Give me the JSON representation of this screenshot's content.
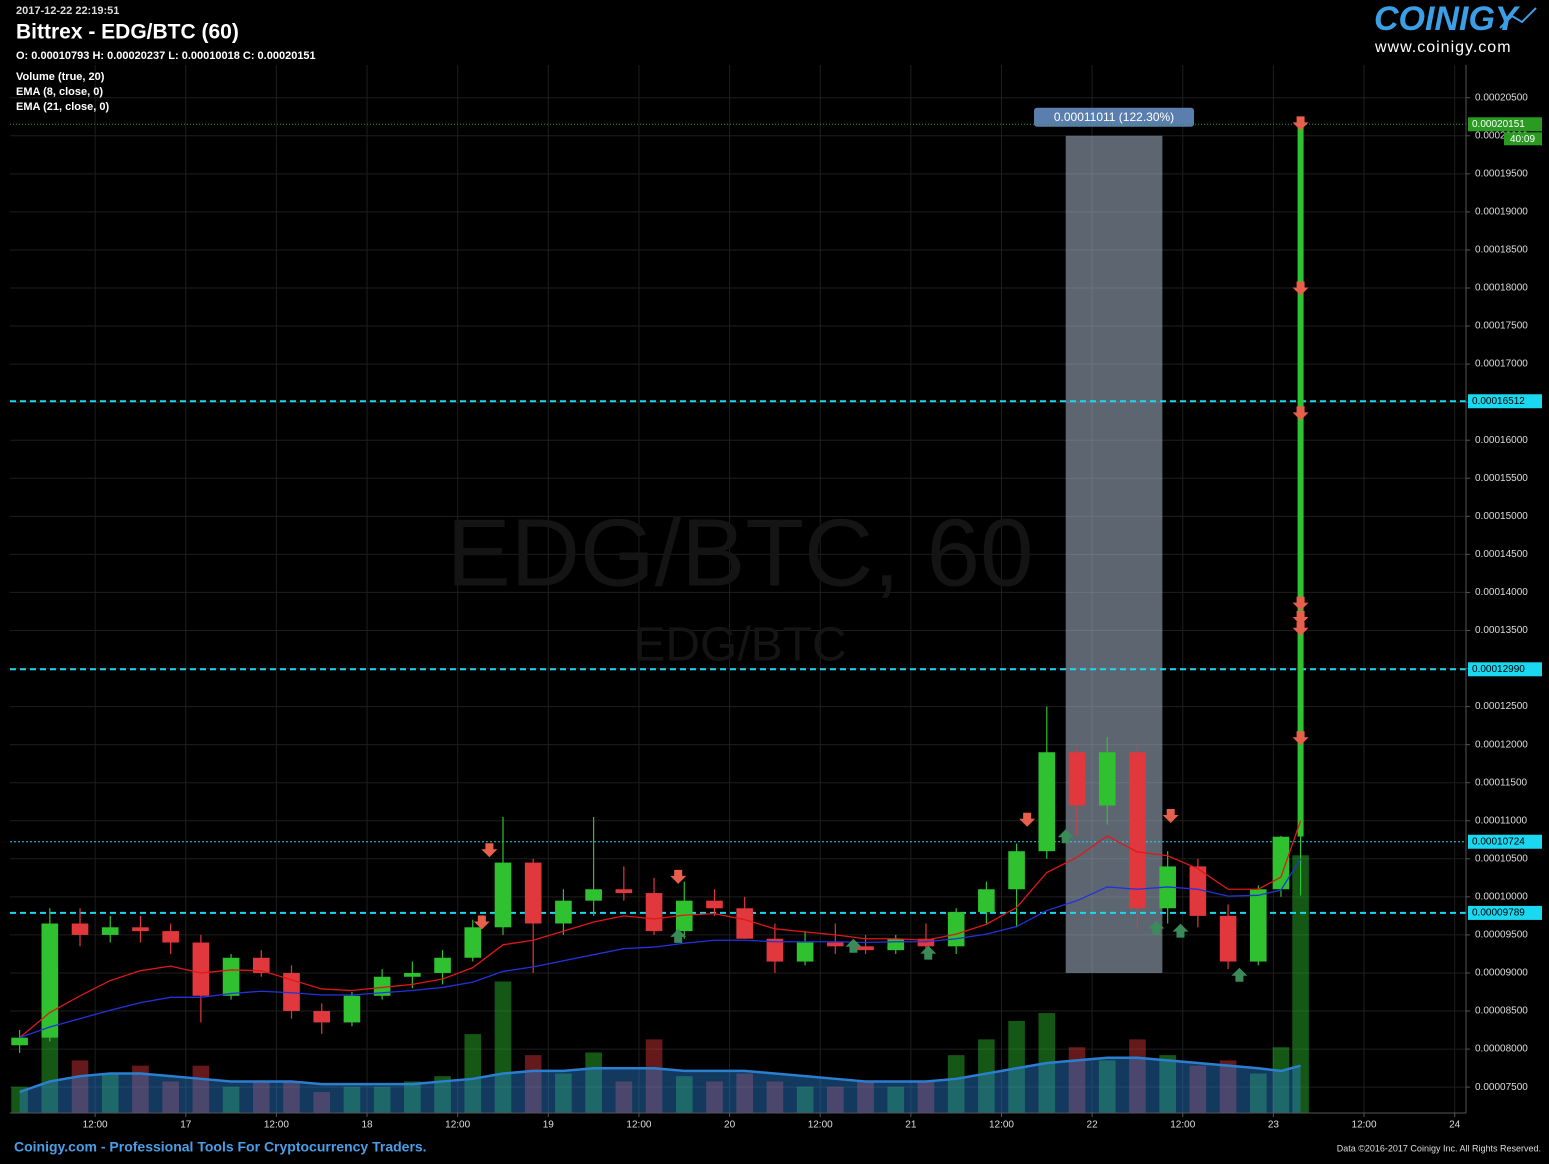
{
  "header": {
    "timestamp": "2017-12-22 22:19:51",
    "title": "Bittrex - EDG/BTC (60)",
    "ohlc": "O: 0.00010793 H: 0.00020237 L: 0.00010018 C: 0.00020151"
  },
  "logo": {
    "name": "COINIGY",
    "url": "www.coinigy.com"
  },
  "footer": {
    "left": "Coinigy.com - Professional Tools For Cryptocurrency Traders.",
    "right": "Data ©2016-2017 Coinigy Inc. All Rights Reserved."
  },
  "chart_data": {
    "type": "candlestick",
    "watermark": "EDG/BTC, 60",
    "watermark_sub": "EDG/BTC",
    "x": [
      2,
      6,
      10,
      14,
      18,
      22,
      26,
      30,
      34,
      38,
      42,
      46,
      50,
      54,
      58,
      62,
      66,
      70,
      74,
      78,
      82,
      86,
      90,
      94,
      98,
      102,
      106,
      110,
      114,
      118,
      122,
      126,
      130,
      134,
      138,
      142,
      146,
      150,
      154,
      158,
      162,
      166,
      169,
      171.6
    ],
    "open": [
      8.05e-05,
      8.15e-05,
      9.65e-05,
      9.5e-05,
      9.6e-05,
      9.55e-05,
      9.4e-05,
      8.7e-05,
      9.2e-05,
      9e-05,
      8.5e-05,
      8.35e-05,
      8.7e-05,
      8.95e-05,
      9e-05,
      9.2e-05,
      9.6e-05,
      0.0001045,
      9.65e-05,
      9.95e-05,
      0.000101,
      0.0001005,
      9.55e-05,
      9.95e-05,
      9.85e-05,
      9.45e-05,
      9.15e-05,
      9.4e-05,
      9.35e-05,
      9.3e-05,
      9.45e-05,
      9.35e-05,
      9.8e-05,
      0.000101,
      0.000106,
      0.000119,
      0.000112,
      0.000119,
      9.85e-05,
      0.000104,
      9.75e-05,
      9.15e-05,
      0.000101,
      0.00010793
    ],
    "high": [
      8.25e-05,
      9.85e-05,
      9.85e-05,
      9.75e-05,
      9.75e-05,
      9.65e-05,
      9.5e-05,
      9.25e-05,
      9.3e-05,
      9.1e-05,
      8.6e-05,
      8.75e-05,
      9.05e-05,
      9.15e-05,
      9.3e-05,
      9.7e-05,
      0.0001105,
      0.000105,
      0.000101,
      0.0001105,
      0.000104,
      0.0001025,
      0.000102,
      0.000101,
      0.0001,
      9.65e-05,
      9.55e-05,
      9.65e-05,
      9.5e-05,
      9.5e-05,
      9.65e-05,
      9.85e-05,
      0.000102,
      0.000107,
      0.000125,
      0.0001195,
      0.000121,
      0.00012,
      0.000106,
      0.000105,
      9.9e-05,
      0.0001015,
      0.000108,
      0.00020237
    ],
    "low": [
      7.95e-05,
      8.1e-05,
      9.35e-05,
      9.4e-05,
      9.4e-05,
      9.25e-05,
      8.35e-05,
      8.65e-05,
      8.95e-05,
      8.4e-05,
      8.2e-05,
      8.3e-05,
      8.65e-05,
      8.8e-05,
      8.85e-05,
      9.15e-05,
      9.5e-05,
      9e-05,
      9.5e-05,
      9.75e-05,
      9.95e-05,
      9.5e-05,
      9.45e-05,
      9.75e-05,
      9.45e-05,
      9e-05,
      9.1e-05,
      9.25e-05,
      9.25e-05,
      9.25e-05,
      9.3e-05,
      9.25e-05,
      9.65e-05,
      9.6e-05,
      0.000105,
      0.000108,
      0.0001095,
      9.6e-05,
      9.65e-05,
      9.6e-05,
      9.05e-05,
      9.1e-05,
      0.0001,
      0.00010018
    ],
    "close": [
      8.15e-05,
      9.65e-05,
      9.5e-05,
      9.6e-05,
      9.55e-05,
      9.4e-05,
      8.7e-05,
      9.2e-05,
      9e-05,
      8.5e-05,
      8.35e-05,
      8.7e-05,
      8.95e-05,
      9e-05,
      9.2e-05,
      9.6e-05,
      0.0001045,
      9.65e-05,
      9.95e-05,
      0.000101,
      0.0001005,
      9.55e-05,
      9.95e-05,
      9.85e-05,
      9.45e-05,
      9.15e-05,
      9.4e-05,
      9.35e-05,
      9.3e-05,
      9.45e-05,
      9.35e-05,
      9.8e-05,
      0.000101,
      0.000106,
      0.000119,
      0.000112,
      0.000119,
      9.85e-05,
      0.000104,
      9.75e-05,
      9.15e-05,
      0.000101,
      0.0001079,
      0.00020151
    ],
    "colors": {
      "up": "#2fc12f",
      "down": "#e0383c"
    },
    "series": [
      {
        "name": "EMA (8, close, 0)",
        "color": "#e01818",
        "values": [
          8.15e-05,
          8.48e-05,
          8.7e-05,
          8.9e-05,
          9.03e-05,
          9.09e-05,
          9e-05,
          9.04e-05,
          9.03e-05,
          8.91e-05,
          8.79e-05,
          8.77e-05,
          8.81e-05,
          8.85e-05,
          8.92e-05,
          9.07e-05,
          9.37e-05,
          9.43e-05,
          9.55e-05,
          9.67e-05,
          9.75e-05,
          9.71e-05,
          9.76e-05,
          9.78e-05,
          9.7e-05,
          9.58e-05,
          9.54e-05,
          9.5e-05,
          9.45e-05,
          9.45e-05,
          9.43e-05,
          9.51e-05,
          9.64e-05,
          9.86e-05,
          0.0001032,
          0.0001052,
          0.000108,
          0.0001059,
          0.0001054,
          0.0001037,
          0.000101,
          0.000101,
          0.0001026,
          0.00011
        ]
      },
      {
        "name": "EMA (21, close, 0)",
        "color": "#2233dd",
        "values": [
          8.15e-05,
          8.29e-05,
          8.4e-05,
          8.51e-05,
          8.61e-05,
          8.68e-05,
          8.68e-05,
          8.73e-05,
          8.76e-05,
          8.74e-05,
          8.71e-05,
          8.71e-05,
          8.74e-05,
          8.77e-05,
          8.81e-05,
          8.88e-05,
          9.02e-05,
          9.08e-05,
          9.16e-05,
          9.24e-05,
          9.32e-05,
          9.34e-05,
          9.39e-05,
          9.43e-05,
          9.43e-05,
          9.41e-05,
          9.41e-05,
          9.41e-05,
          9.4e-05,
          9.41e-05,
          9.41e-05,
          9.45e-05,
          9.51e-05,
          9.61e-05,
          9.82e-05,
          9.95e-05,
          0.0001013,
          0.000101,
          0.0001013,
          0.000101,
          0.0001001,
          0.0001002,
          0.0001009,
          0.000105
        ]
      }
    ],
    "volume_name": "Volume (true, 20)",
    "volume": [
      10,
      55,
      20,
      15,
      18,
      12,
      18,
      10,
      12,
      12,
      8,
      10,
      10,
      12,
      14,
      30,
      50,
      22,
      15,
      23,
      12,
      28,
      14,
      12,
      15,
      12,
      10,
      10,
      12,
      10,
      12,
      22,
      28,
      35,
      38,
      25,
      20,
      28,
      22,
      18,
      20,
      15,
      25,
      98
    ],
    "volume_ma": [
      8,
      12,
      14,
      15,
      15,
      14,
      13,
      12,
      12,
      12,
      11,
      11,
      11,
      11,
      12,
      13,
      15,
      16,
      16,
      17,
      17,
      17,
      16,
      16,
      16,
      15,
      14,
      13,
      12,
      12,
      12,
      13,
      15,
      17,
      19,
      20,
      21,
      21,
      20,
      19,
      18,
      17,
      16,
      18
    ],
    "volume_color": "#2a7fd0",
    "volume_ylim": [
      0,
      100
    ],
    "xlim": [
      0.73,
      193.5
    ],
    "ylim": [
      7.16e-05,
      0.0002093
    ],
    "xticks": [
      {
        "value": 12,
        "label": "12:00"
      },
      {
        "value": 24,
        "label": "17"
      },
      {
        "value": 36,
        "label": "12:00"
      },
      {
        "value": 48,
        "label": "18"
      },
      {
        "value": 60,
        "label": "12:00"
      },
      {
        "value": 72,
        "label": "19"
      },
      {
        "value": 84,
        "label": "12:00"
      },
      {
        "value": 96,
        "label": "20"
      },
      {
        "value": 108,
        "label": "12:00"
      },
      {
        "value": 120,
        "label": "21"
      },
      {
        "value": 132,
        "label": "12:00"
      },
      {
        "value": 144,
        "label": "22"
      },
      {
        "value": 156,
        "label": "12:00"
      },
      {
        "value": 168,
        "label": "23"
      },
      {
        "value": 180,
        "label": "12:00"
      },
      {
        "value": 192,
        "label": "24"
      }
    ],
    "yticks": [
      {
        "value": 7.5e-05,
        "label": "0.00007500"
      },
      {
        "value": 8e-05,
        "label": "0.00008000"
      },
      {
        "value": 8.5e-05,
        "label": "0.00008500"
      },
      {
        "value": 9e-05,
        "label": "0.00009000"
      },
      {
        "value": 9.5e-05,
        "label": "0.00009500"
      },
      {
        "value": 0.0001,
        "label": "0.00010000"
      },
      {
        "value": 0.000105,
        "label": "0.00010500"
      },
      {
        "value": 0.00011,
        "label": "0.00011000"
      },
      {
        "value": 0.000115,
        "label": "0.00011500"
      },
      {
        "value": 0.00012,
        "label": "0.00012000"
      },
      {
        "value": 0.000125,
        "label": "0.00012500"
      },
      {
        "value": 0.00013,
        "label": "0.00013000"
      },
      {
        "value": 0.000135,
        "label": "0.00013500"
      },
      {
        "value": 0.00014,
        "label": "0.00014000"
      },
      {
        "value": 0.000145,
        "label": "0.00014500"
      },
      {
        "value": 0.00015,
        "label": "0.00015000"
      },
      {
        "value": 0.000155,
        "label": "0.00015500"
      },
      {
        "value": 0.00016,
        "label": "0.00016000"
      },
      {
        "value": 0.000165,
        "label": "0.00016500"
      },
      {
        "value": 0.00017,
        "label": "0.00017000"
      },
      {
        "value": 0.000175,
        "label": "0.00017500"
      },
      {
        "value": 0.00018,
        "label": "0.00018000"
      },
      {
        "value": 0.000185,
        "label": "0.00018500"
      },
      {
        "value": 0.00019,
        "label": "0.00019000"
      },
      {
        "value": 0.000195,
        "label": "0.00019500"
      },
      {
        "value": 0.0002,
        "label": "0.00020000"
      },
      {
        "value": 0.000205,
        "label": "0.00020500"
      }
    ],
    "grid": true,
    "levels": [
      {
        "value": 0.00016512,
        "label": "0.00016512",
        "style": "dashed"
      },
      {
        "value": 0.0001299,
        "label": "0.00012990",
        "style": "dashed"
      },
      {
        "value": 0.00010724,
        "label": "0.00010724",
        "style": "dotted"
      },
      {
        "value": 9.789e-05,
        "label": "0.00009789",
        "style": "dashed"
      }
    ],
    "level_color": "#19d8f0",
    "last_price": {
      "value": 0.00020151,
      "label": "0.00020151",
      "countdown": "40:09",
      "color": "#2a9a22"
    },
    "measure": {
      "x": [
        140.5,
        153.3
      ],
      "y": [
        9e-05,
        0.0002
      ],
      "label": "0.00011011 (122.30%)"
    },
    "sell_signals": {
      "color": "#e8604c",
      "x": [
        64.2,
        63.2,
        89.2,
        135.4,
        154.4,
        171.6,
        171.6,
        171.6,
        171.6,
        171.6,
        171.6,
        171.6
      ],
      "y": [
        0.000106,
        9.65e-05,
        0.0001025,
        0.00011,
        0.0001105,
        0.0002015,
        0.0001798,
        0.0001634,
        0.0001384,
        0.0001365,
        0.0001351,
        0.0001207
      ]
    },
    "buy_signals": {
      "color": "#3a8a5a",
      "x": [
        89.2,
        112.4,
        122.3,
        140.5,
        152.5,
        155.7,
        163.5
      ],
      "y": [
        9.5e-05,
        9.37e-05,
        9.28e-05,
        0.0001081,
        9.61e-05,
        9.57e-05,
        8.99e-05
      ]
    }
  }
}
